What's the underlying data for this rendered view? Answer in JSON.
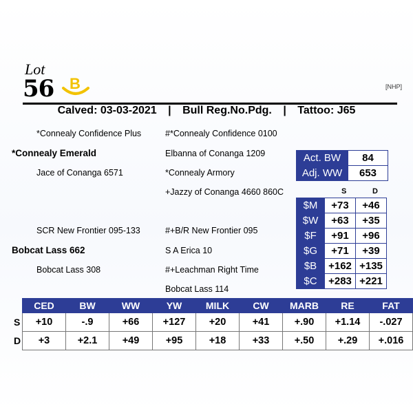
{
  "header": {
    "lot_label": "Lot",
    "lot_number": "56",
    "brand_letter": "B",
    "brand_color": "#f2c200",
    "tag": "[NHP]",
    "calved": "Calved: 03-03-2021",
    "reg": "Bull Reg.No.Pdg.",
    "tattoo": "Tattoo: J65",
    "separator": "|"
  },
  "pedigree": {
    "sire": "*Connealy Emerald",
    "sire_sire": "*Connealy Confidence Plus",
    "sire_sire_sire": "#*Connealy Confidence 0100",
    "sire_sire_dam": "Elbanna of Conanga 1209",
    "sire_dam": "Jace of Conanga 6571",
    "sire_dam_sire": "*Connealy Armory",
    "sire_dam_dam": "+Jazzy of Conanga 4660 860C",
    "dam": "Bobcat Lass 662",
    "dam_sire": "SCR New Frontier 095-133",
    "dam_sire_sire": "#+B/R New Frontier 095",
    "dam_sire_dam": "S A Erica 10",
    "dam_dam": "Bobcat Lass 308",
    "dam_dam_sire": "#+Leachman Right Time",
    "dam_dam_dam": "Bobcat Lass 114"
  },
  "weights": {
    "act_bw_label": "Act. BW",
    "act_bw": "84",
    "adj_ww_label": "Adj. WW",
    "adj_ww": "653"
  },
  "indexes": {
    "col_s": "S",
    "col_d": "D",
    "rows": [
      {
        "label": "$M",
        "s": "+73",
        "d": "+46"
      },
      {
        "label": "$W",
        "s": "+63",
        "d": "+35"
      },
      {
        "label": "$F",
        "s": "+91",
        "d": "+96"
      },
      {
        "label": "$G",
        "s": "+71",
        "d": "+39"
      },
      {
        "label": "$B",
        "s": "+162",
        "d": "+135"
      },
      {
        "label": "$C",
        "s": "+283",
        "d": "+221"
      }
    ]
  },
  "epd": {
    "headers": [
      "CED",
      "BW",
      "WW",
      "YW",
      "MILK",
      "CW",
      "MARB",
      "RE",
      "FAT"
    ],
    "rows": [
      {
        "label": "S",
        "values": [
          "+10",
          "-.9",
          "+66",
          "+127",
          "+20",
          "+41",
          "+.90",
          "+1.14",
          "-.027"
        ]
      },
      {
        "label": "D",
        "values": [
          "+3",
          "+2.1",
          "+49",
          "+95",
          "+18",
          "+33",
          "+.50",
          "+.29",
          "+.016"
        ]
      }
    ]
  },
  "colors": {
    "accent_blue": "#2d3d96"
  }
}
